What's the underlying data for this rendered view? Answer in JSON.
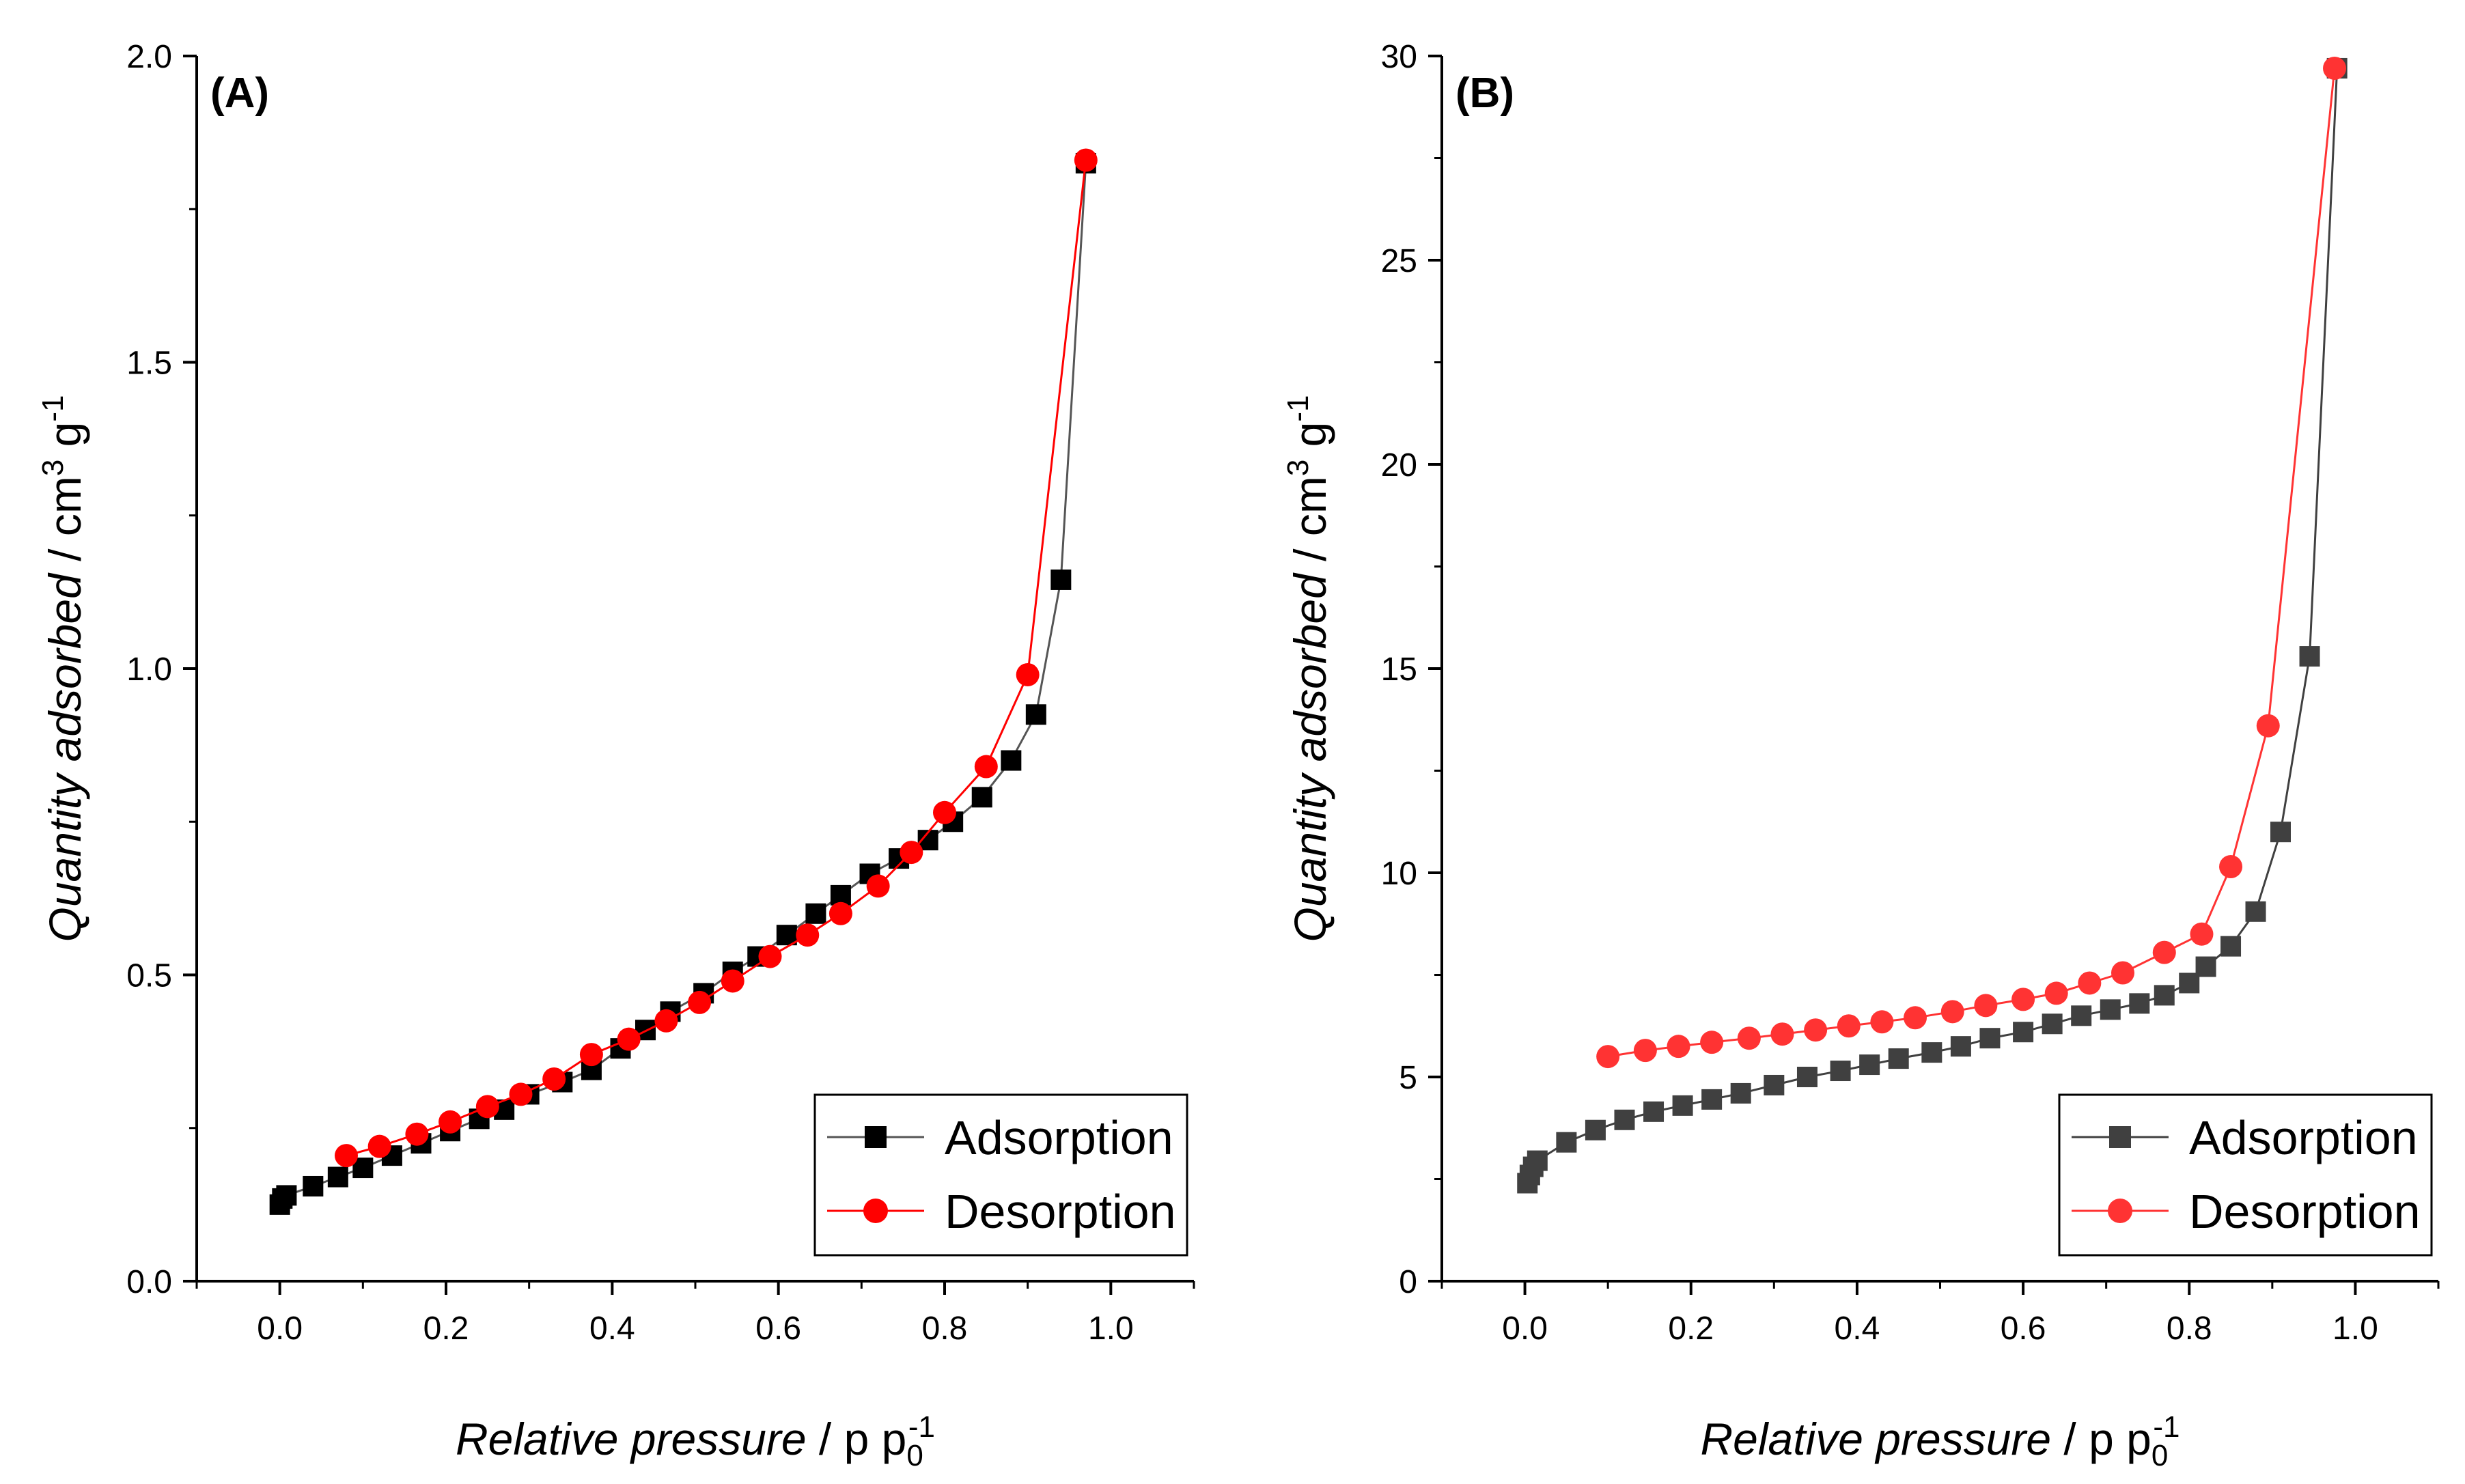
{
  "chart_data": [
    {
      "type": "scatter",
      "panel_label": "(A)",
      "xlabel": "Relative pressure / p p0-1",
      "ylabel": "Quantity adsorbed / cm3 g-1",
      "xlim": [
        -0.1,
        1.1
      ],
      "ylim": [
        0,
        2.0
      ],
      "xticks": [
        "0.0",
        "0.2",
        "0.4",
        "0.6",
        "0.8",
        "1.0"
      ],
      "yticks": [
        "0.0",
        "0.5",
        "1.0",
        "1.5",
        "2.0"
      ],
      "grid": false,
      "legend_position": "bottom-right",
      "series": [
        {
          "name": "Adsorption",
          "marker": "square",
          "color": "#000000",
          "line_color": "#555555",
          "points": [
            [
              0.0,
              0.125
            ],
            [
              0.003,
              0.135
            ],
            [
              0.008,
              0.14
            ],
            [
              0.04,
              0.155
            ],
            [
              0.07,
              0.17
            ],
            [
              0.1,
              0.185
            ],
            [
              0.135,
              0.205
            ],
            [
              0.17,
              0.225
            ],
            [
              0.205,
              0.245
            ],
            [
              0.24,
              0.265
            ],
            [
              0.27,
              0.28
            ],
            [
              0.3,
              0.305
            ],
            [
              0.34,
              0.325
            ],
            [
              0.375,
              0.345
            ],
            [
              0.41,
              0.38
            ],
            [
              0.44,
              0.41
            ],
            [
              0.47,
              0.44
            ],
            [
              0.51,
              0.47
            ],
            [
              0.545,
              0.505
            ],
            [
              0.575,
              0.53
            ],
            [
              0.61,
              0.565
            ],
            [
              0.645,
              0.6
            ],
            [
              0.675,
              0.63
            ],
            [
              0.71,
              0.665
            ],
            [
              0.745,
              0.69
            ],
            [
              0.78,
              0.72
            ],
            [
              0.81,
              0.75
            ],
            [
              0.845,
              0.79
            ],
            [
              0.88,
              0.85
            ],
            [
              0.91,
              0.925
            ],
            [
              0.94,
              1.145
            ],
            [
              0.97,
              1.825
            ]
          ]
        },
        {
          "name": "Desorption",
          "marker": "circle",
          "color": "#ff0000",
          "line_color": "#ff0000",
          "points": [
            [
              0.08,
              0.205
            ],
            [
              0.12,
              0.22
            ],
            [
              0.165,
              0.24
            ],
            [
              0.205,
              0.26
            ],
            [
              0.25,
              0.285
            ],
            [
              0.29,
              0.305
            ],
            [
              0.33,
              0.33
            ],
            [
              0.375,
              0.37
            ],
            [
              0.42,
              0.395
            ],
            [
              0.465,
              0.425
            ],
            [
              0.505,
              0.455
            ],
            [
              0.545,
              0.49
            ],
            [
              0.59,
              0.53
            ],
            [
              0.635,
              0.565
            ],
            [
              0.675,
              0.6
            ],
            [
              0.72,
              0.645
            ],
            [
              0.76,
              0.7
            ],
            [
              0.8,
              0.765
            ],
            [
              0.85,
              0.84
            ],
            [
              0.9,
              0.99
            ],
            [
              0.97,
              1.83
            ]
          ]
        }
      ]
    },
    {
      "type": "scatter",
      "panel_label": "(B)",
      "xlabel": "Relative pressure / p p0-1",
      "ylabel": "Quantity adsorbed / cm3 g-1",
      "xlim": [
        -0.1,
        1.1
      ],
      "ylim": [
        0,
        30
      ],
      "xticks": [
        "0.0",
        "0.2",
        "0.4",
        "0.6",
        "0.8",
        "1.0"
      ],
      "yticks": [
        "0",
        "5",
        "10",
        "15",
        "20",
        "25",
        "30"
      ],
      "grid": false,
      "legend_position": "bottom-right",
      "series": [
        {
          "name": "Adsorption",
          "marker": "square",
          "color": "#404040",
          "line_color": "#404040",
          "points": [
            [
              0.003,
              2.4
            ],
            [
              0.006,
              2.6
            ],
            [
              0.01,
              2.8
            ],
            [
              0.015,
              2.95
            ],
            [
              0.05,
              3.4
            ],
            [
              0.085,
              3.7
            ],
            [
              0.12,
              3.95
            ],
            [
              0.155,
              4.15
            ],
            [
              0.19,
              4.3
            ],
            [
              0.225,
              4.45
            ],
            [
              0.26,
              4.6
            ],
            [
              0.3,
              4.8
            ],
            [
              0.34,
              5.0
            ],
            [
              0.38,
              5.15
            ],
            [
              0.415,
              5.3
            ],
            [
              0.45,
              5.45
            ],
            [
              0.49,
              5.6
            ],
            [
              0.525,
              5.75
            ],
            [
              0.56,
              5.95
            ],
            [
              0.6,
              6.1
            ],
            [
              0.635,
              6.3
            ],
            [
              0.67,
              6.5
            ],
            [
              0.705,
              6.65
            ],
            [
              0.74,
              6.8
            ],
            [
              0.77,
              7.0
            ],
            [
              0.8,
              7.3
            ],
            [
              0.82,
              7.7
            ],
            [
              0.85,
              8.2
            ],
            [
              0.88,
              9.05
            ],
            [
              0.91,
              11.0
            ],
            [
              0.945,
              15.3
            ],
            [
              0.978,
              29.7
            ]
          ]
        },
        {
          "name": "Desorption",
          "marker": "circle",
          "color": "#ff3333",
          "line_color": "#ff3333",
          "points": [
            [
              0.1,
              5.5
            ],
            [
              0.145,
              5.65
            ],
            [
              0.185,
              5.75
            ],
            [
              0.225,
              5.85
            ],
            [
              0.27,
              5.95
            ],
            [
              0.31,
              6.05
            ],
            [
              0.35,
              6.15
            ],
            [
              0.39,
              6.25
            ],
            [
              0.43,
              6.35
            ],
            [
              0.47,
              6.45
            ],
            [
              0.515,
              6.6
            ],
            [
              0.555,
              6.75
            ],
            [
              0.6,
              6.9
            ],
            [
              0.64,
              7.05
            ],
            [
              0.68,
              7.3
            ],
            [
              0.72,
              7.55
            ],
            [
              0.77,
              8.05
            ],
            [
              0.815,
              8.5
            ],
            [
              0.85,
              10.15
            ],
            [
              0.895,
              13.6
            ],
            [
              0.975,
              29.7
            ]
          ]
        }
      ]
    }
  ]
}
